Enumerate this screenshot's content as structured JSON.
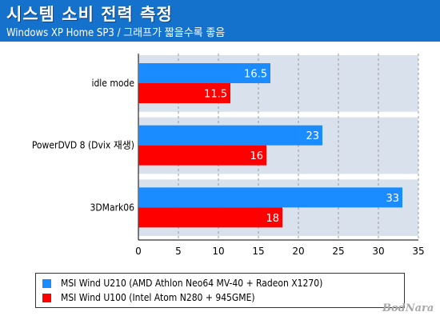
{
  "header": {
    "title": "시스템 소비 전력 측정",
    "subtitle": "Windows XP Home SP3 / 그래프가 짧을수록 좋음"
  },
  "colors": {
    "header_bg": "#1572cc",
    "series1": "#1b8cff",
    "series2": "#ff0000",
    "plot_band": "#d9e2ec"
  },
  "chart_data": {
    "type": "bar",
    "orientation": "horizontal",
    "categories": [
      "idle mode",
      "PowerDVD 8 (Dvix 재생)",
      "3DMark06"
    ],
    "series": [
      {
        "name": "MSI Wind U210 (AMD Athlon Neo64 MV-40 + Radeon X1270)",
        "values": [
          16.5,
          23,
          33
        ]
      },
      {
        "name": "MSI Wind U100 (Intel Atom N280 + 945GME)",
        "values": [
          11.5,
          16,
          18
        ]
      }
    ],
    "xlim": [
      0,
      35
    ],
    "xticks": [
      0,
      5,
      10,
      15,
      20,
      25,
      30,
      35
    ],
    "data_labels": true,
    "grid": true,
    "legend_position": "bottom"
  },
  "watermark": "BodNara"
}
